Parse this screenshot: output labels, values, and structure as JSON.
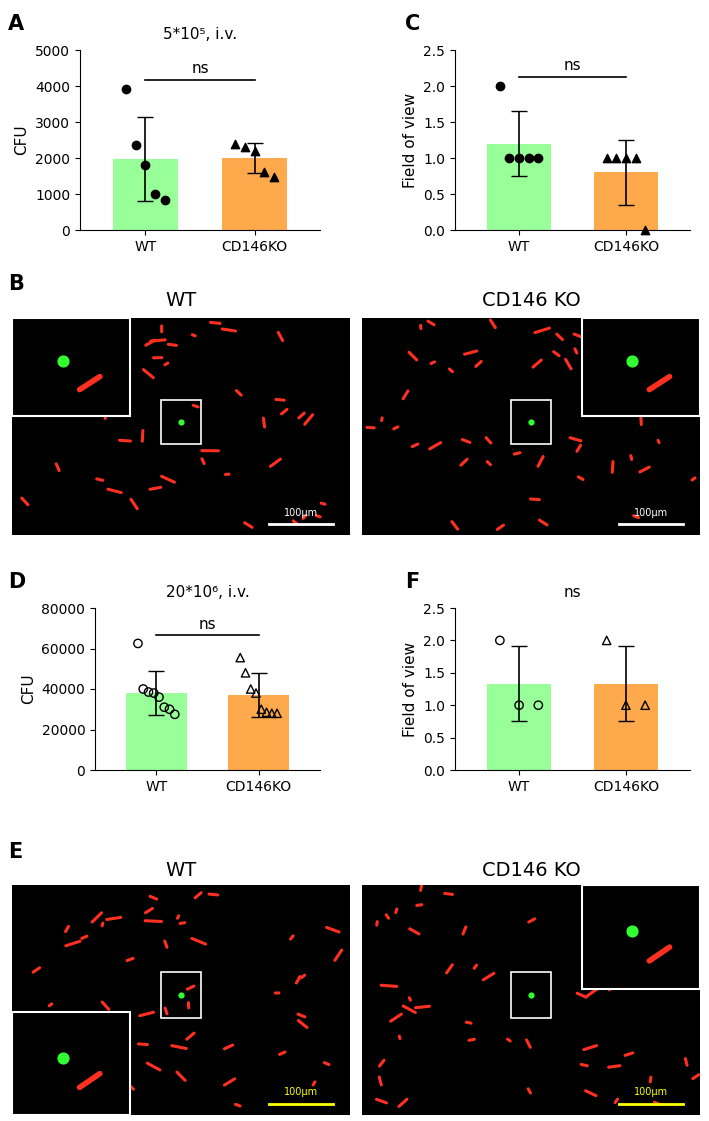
{
  "chart_data": [
    {
      "panel_label": "A",
      "type": "bar",
      "title": "5*10⁵, i.v.",
      "y_label": "CFU",
      "categories": [
        "WT",
        "CD146KO"
      ],
      "values": [
        1980,
        1990
      ],
      "errors": [
        1170,
        420
      ],
      "points": [
        [
          3930,
          2350,
          1800,
          1000,
          820
        ],
        [
          2380,
          2300,
          2200,
          1600,
          1470
        ]
      ],
      "colors": [
        "#99ff99",
        "#ffa94d"
      ],
      "marker": "filled",
      "annotation": "ns",
      "ylim": [
        0,
        5000
      ],
      "yticks": [
        0,
        1000,
        2000,
        3000,
        4000,
        5000
      ]
    },
    {
      "panel_label": "C",
      "type": "bar",
      "y_label": "Field of view",
      "categories": [
        "WT",
        "CD146KO"
      ],
      "values": [
        1.2,
        0.8
      ],
      "errors": [
        0.45,
        0.45
      ],
      "points": [
        [
          2,
          1,
          1,
          1,
          1
        ],
        [
          1,
          1,
          1,
          1,
          0
        ]
      ],
      "colors": [
        "#99ff99",
        "#ffa94d"
      ],
      "marker": "filled",
      "annotation": "ns",
      "ylim": [
        0,
        2.5
      ],
      "yticks": [
        {
          "value": 0,
          "label": "0.0"
        },
        {
          "value": 0.5,
          "label": "0.5"
        },
        {
          "value": 1,
          "label": "1.0"
        },
        {
          "value": 1.5,
          "label": "1.5"
        },
        {
          "value": 2,
          "label": "2.0"
        },
        {
          "value": 2.5,
          "label": "2.5"
        }
      ]
    },
    {
      "panel_label": "D",
      "type": "bar",
      "title": "20*10⁶, i.v.",
      "y_label": "CFU",
      "categories": [
        "WT",
        "CD146KO"
      ],
      "values": [
        38000,
        37000
      ],
      "errors": [
        11000,
        11000
      ],
      "points": [
        [
          62500,
          40000,
          38500,
          38000,
          36000,
          31000,
          30000,
          27500
        ],
        [
          55500,
          48000,
          40000,
          38000,
          30000,
          28500,
          28000,
          28000
        ]
      ],
      "colors": [
        "#99ff99",
        "#ffa94d"
      ],
      "marker": "open",
      "annotation": "ns",
      "ylim": [
        0,
        80000
      ],
      "yticks": [
        0,
        20000,
        40000,
        60000,
        80000
      ]
    },
    {
      "panel_label": "F",
      "type": "bar",
      "title": "ns",
      "y_label": "Field of view",
      "categories": [
        "WT",
        "CD146KO"
      ],
      "values": [
        1.333,
        1.333
      ],
      "errors": [
        0.577,
        0.577
      ],
      "points": [
        [
          2,
          1,
          1
        ],
        [
          2,
          1,
          1
        ]
      ],
      "colors": [
        "#99ff99",
        "#ffa94d"
      ],
      "marker": "open",
      "ylim": [
        0,
        2.5
      ],
      "yticks": [
        {
          "value": 0,
          "label": "0.0"
        },
        {
          "value": 0.5,
          "label": "0.5"
        },
        {
          "value": 1,
          "label": "1.0"
        },
        {
          "value": 1.5,
          "label": "1.5"
        },
        {
          "value": 2,
          "label": "2.0"
        },
        {
          "value": 2.5,
          "label": "2.5"
        }
      ]
    }
  ],
  "images": [
    {
      "panel_label": "B",
      "color": "white",
      "panels": [
        {
          "label": "WT",
          "scale_bar": "100μm"
        },
        {
          "label": "CD146 KO",
          "scale_bar": "100μm"
        }
      ]
    },
    {
      "panel_label": "E",
      "color": "yellow",
      "panels": [
        {
          "label": "WT",
          "scale_bar": "100μm"
        },
        {
          "label": "CD146 KO",
          "scale_bar": "100μm"
        }
      ]
    }
  ]
}
